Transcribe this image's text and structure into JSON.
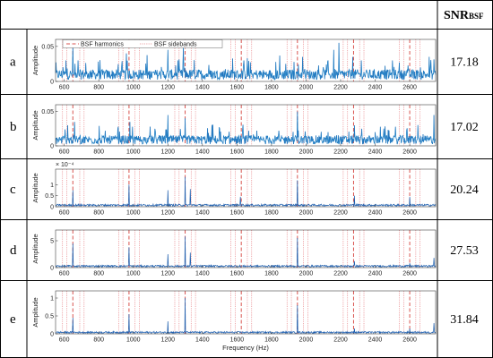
{
  "header": {
    "snr_main": "SNR",
    "snr_sub": "BSF"
  },
  "legend": {
    "harmonics": "BSF harmonics",
    "sidebands": "BSF sidebands"
  },
  "colors": {
    "signal": "#1f5fae",
    "signal_light": "#2d9bd6",
    "harmonic": "#d9534f",
    "sideband": "#e8868a"
  },
  "chart_data": {
    "type": "line",
    "xlabel": "Frequency (Hz)",
    "ylabel": "Amplitude",
    "xlim": [
      550,
      2750
    ],
    "xticks": [
      600,
      800,
      1000,
      1200,
      1400,
      1600,
      1800,
      2000,
      2200,
      2400,
      2600
    ],
    "bsf_harmonics": [
      650,
      975,
      1300,
      1625,
      1950,
      2275,
      2600
    ],
    "bsf_sidebands": [
      590,
      615,
      690,
      715,
      915,
      940,
      1010,
      1035,
      1240,
      1265,
      1335,
      1360,
      1565,
      1590,
      1660,
      1685,
      1890,
      1915,
      1985,
      2010,
      2215,
      2240,
      2310,
      2335,
      2540,
      2565,
      2635,
      2660
    ],
    "panels": [
      {
        "label": "a",
        "snr": "17.18",
        "ylim": [
          0,
          0.06
        ],
        "yticks": [
          0,
          0.05
        ],
        "ytick_labels": [
          "0",
          "0.05"
        ],
        "exponent": "",
        "noise": 0.009,
        "peaks": [
          [
            610,
            0.03
          ],
          [
            650,
            0.05
          ],
          [
            680,
            0.03
          ],
          [
            960,
            0.04
          ],
          [
            1200,
            0.045
          ],
          [
            1290,
            0.05
          ],
          [
            1640,
            0.03
          ],
          [
            1980,
            0.035
          ],
          [
            2160,
            0.045
          ],
          [
            2190,
            0.055
          ],
          [
            2270,
            0.035
          ],
          [
            2320,
            0.03
          ],
          [
            2500,
            0.03
          ]
        ]
      },
      {
        "label": "b",
        "snr": "17.02",
        "ylim": [
          0,
          0.06
        ],
        "yticks": [
          0,
          0.05
        ],
        "ytick_labels": [
          "0",
          "0.05"
        ],
        "exponent": "",
        "noise": 0.008,
        "peaks": [
          [
            620,
            0.03
          ],
          [
            660,
            0.035
          ],
          [
            980,
            0.035
          ],
          [
            1200,
            0.045
          ],
          [
            1300,
            0.04
          ],
          [
            1500,
            0.025
          ],
          [
            1950,
            0.05
          ],
          [
            2280,
            0.03
          ],
          [
            2450,
            0.025
          ],
          [
            2740,
            0.045
          ]
        ]
      },
      {
        "label": "c",
        "snr": "20.24",
        "ylim": [
          0,
          1.7
        ],
        "yticks": [
          0,
          0.5,
          1
        ],
        "ytick_labels": [
          "0",
          "0.5",
          "1"
        ],
        "exponent": "× 10⁻⁴",
        "noise": 0.09,
        "peaks": [
          [
            650,
            0.75
          ],
          [
            975,
            1.0
          ],
          [
            1200,
            0.75
          ],
          [
            1300,
            1.35
          ],
          [
            1330,
            0.8
          ],
          [
            1620,
            0.45
          ],
          [
            1950,
            1.2
          ],
          [
            2280,
            0.5
          ],
          [
            2600,
            0.45
          ]
        ]
      },
      {
        "label": "d",
        "snr": "27.53",
        "ylim": [
          0,
          7
        ],
        "yticks": [
          0,
          5
        ],
        "ytick_labels": [
          "0",
          "5"
        ],
        "exponent": "",
        "noise": 0.35,
        "peaks": [
          [
            650,
            4.5
          ],
          [
            975,
            3.8
          ],
          [
            1200,
            2.5
          ],
          [
            1300,
            5.8
          ],
          [
            1330,
            2.8
          ],
          [
            1950,
            5.5
          ],
          [
            2280,
            1.2
          ],
          [
            2600,
            0.8
          ],
          [
            2740,
            1.8
          ]
        ]
      },
      {
        "label": "e",
        "snr": "31.84",
        "ylim": [
          0,
          1.2
        ],
        "yticks": [
          0,
          0.5,
          1
        ],
        "ytick_labels": [
          "0",
          "0.5",
          "1"
        ],
        "exponent": "",
        "noise": 0.05,
        "peaks": [
          [
            650,
            0.45
          ],
          [
            975,
            0.55
          ],
          [
            1200,
            0.35
          ],
          [
            1300,
            1.0
          ],
          [
            1950,
            0.8
          ],
          [
            2280,
            0.15
          ],
          [
            2600,
            0.15
          ],
          [
            2740,
            0.3
          ]
        ]
      }
    ]
  }
}
